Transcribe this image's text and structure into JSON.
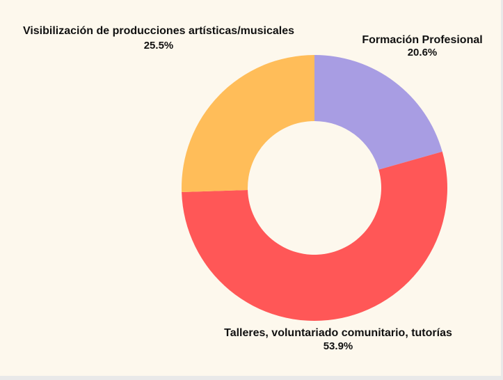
{
  "chart_data": {
    "type": "pie",
    "donut": true,
    "title": "",
    "legend": "none",
    "labels": [
      "Formación Profesional",
      "Talleres, voluntariado comunitario, tutorías",
      "Visibilización de producciones artísticas/musicales"
    ],
    "percent_labels": [
      "20.6%",
      "53.9%",
      "25.5%"
    ],
    "values": [
      20.6,
      53.9,
      25.5
    ],
    "colors": [
      "#a89de3",
      "#ff5757",
      "#ffbd59"
    ],
    "start_angle_deg": 0,
    "direction": "clockwise"
  },
  "colors": {
    "background": "#fdf8ed",
    "outer": "#e9e9e9",
    "text": "#111111"
  }
}
